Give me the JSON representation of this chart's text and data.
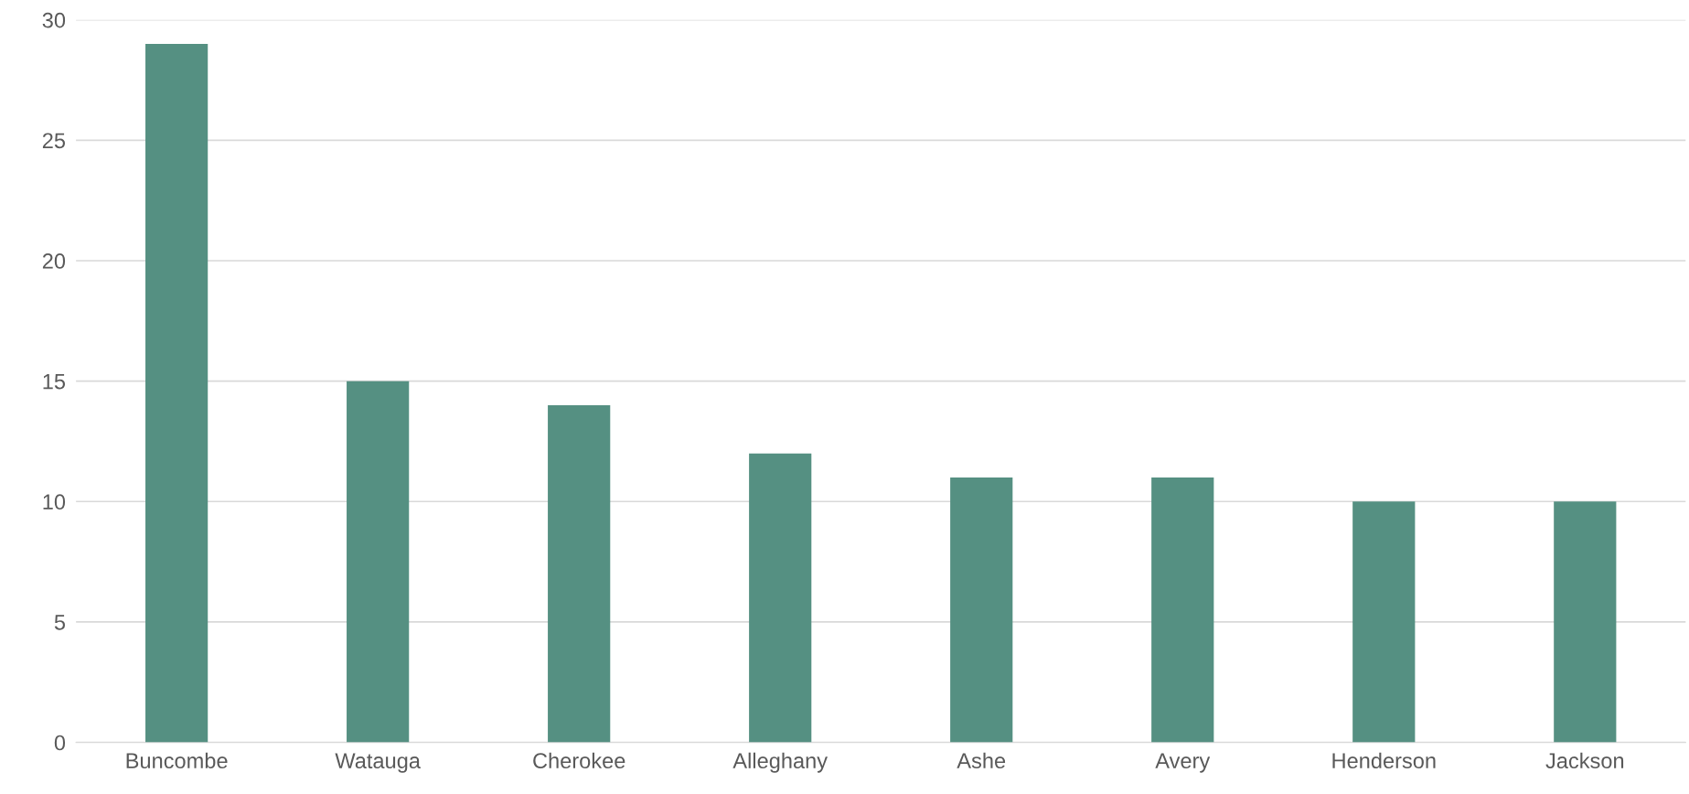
{
  "chart_data": {
    "type": "bar",
    "categories": [
      "Buncombe",
      "Watauga",
      "Cherokee",
      "Alleghany",
      "Ashe",
      "Avery",
      "Henderson",
      "Jackson"
    ],
    "values": [
      29,
      15,
      14,
      12,
      11,
      11,
      10,
      10
    ],
    "color": "#559082",
    "ylim": [
      0,
      30
    ],
    "yticks": [
      0,
      5,
      10,
      15,
      20,
      25,
      30
    ],
    "grid": "y"
  }
}
